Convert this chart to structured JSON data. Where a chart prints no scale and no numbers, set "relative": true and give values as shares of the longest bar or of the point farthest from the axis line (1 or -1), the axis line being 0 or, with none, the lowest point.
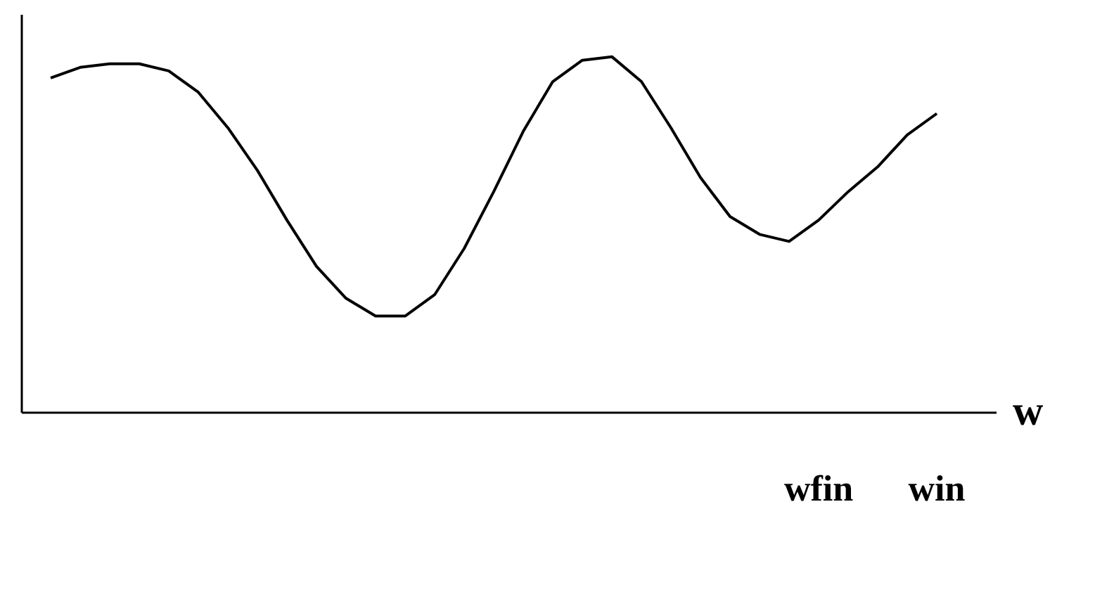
{
  "chart_data": {
    "type": "line",
    "relative": true,
    "xlabel": "w",
    "categories": [
      null,
      null,
      null,
      null,
      null,
      null,
      null,
      null,
      null,
      null,
      null,
      null,
      null,
      null,
      null,
      null,
      null,
      null,
      null,
      null,
      null,
      null,
      null,
      null,
      null,
      null,
      null,
      null,
      null,
      null,
      null
    ],
    "series": [
      {
        "color": "#000000",
        "values": [
          0.94,
          0.97,
          0.98,
          0.98,
          0.96,
          0.9,
          0.8,
          0.68,
          0.54,
          0.41,
          0.32,
          0.27,
          0.27,
          0.33,
          0.46,
          0.62,
          0.79,
          0.93,
          0.99,
          1.0,
          0.93,
          0.8,
          0.66,
          0.55,
          0.5,
          0.48,
          0.54,
          0.62,
          0.69,
          0.78,
          0.84
        ]
      }
    ],
    "annotations": [
      "wfin",
      "win"
    ],
    "grid": false
  }
}
